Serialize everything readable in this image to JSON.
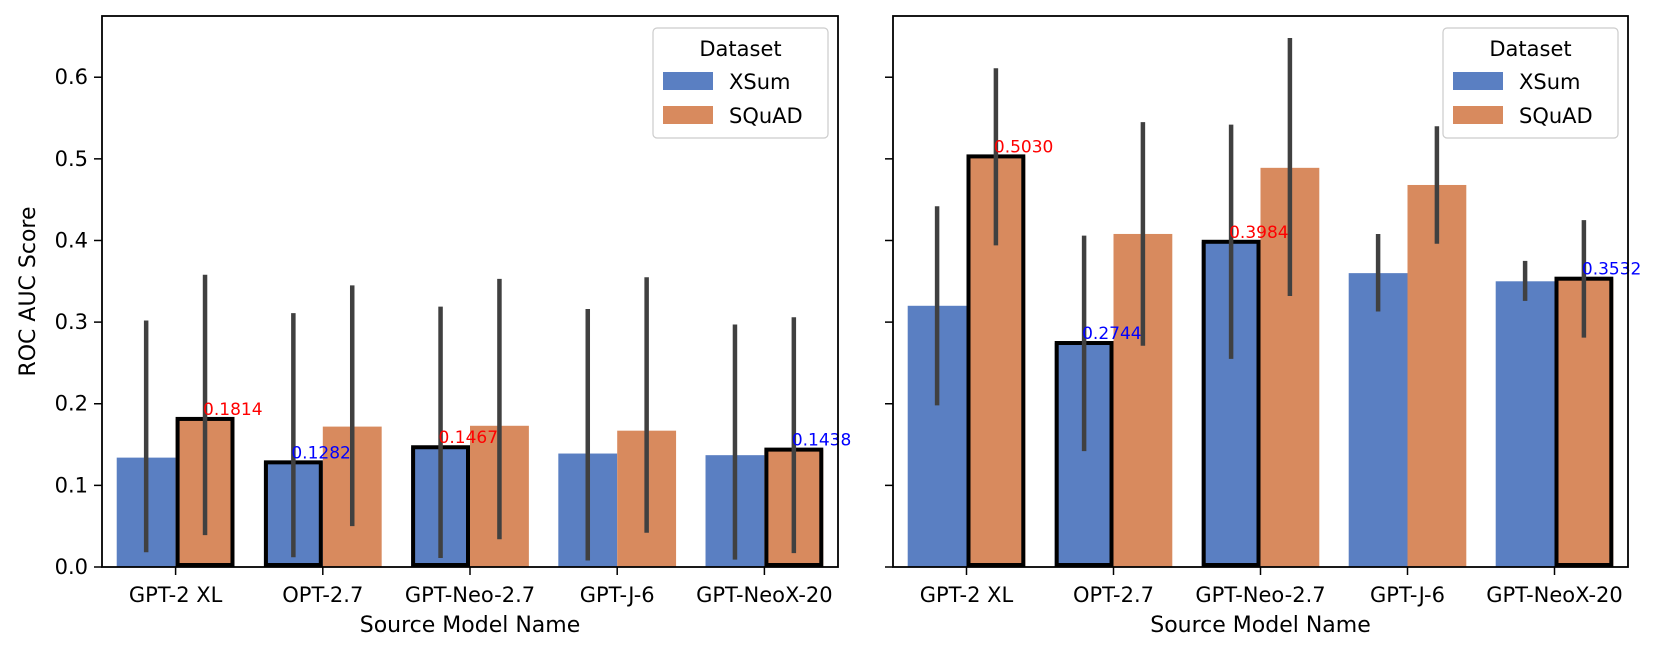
{
  "colors": {
    "xsum": "#5a7fc2",
    "squad": "#d88a5e",
    "errorbar": "#404040",
    "highlight_border": "#000000",
    "annot_blue": "#0000ff",
    "annot_red": "#ff0000"
  },
  "chart_data": [
    {
      "type": "bar",
      "title": "",
      "xlabel": "Source Model Name",
      "ylabel": "ROC AUC Score",
      "ylim": [
        0.0,
        0.675
      ],
      "yticks": [
        "0.0",
        "0.1",
        "0.2",
        "0.3",
        "0.4",
        "0.5",
        "0.6"
      ],
      "show_ytick_labels": true,
      "categories": [
        "GPT-2 XL",
        "OPT-2.7",
        "GPT-Neo-2.7",
        "GPT-J-6",
        "GPT-NeoX-20"
      ],
      "legend": {
        "title": "Dataset",
        "position": "top-right",
        "entries": [
          "XSum",
          "SQuAD"
        ]
      },
      "series": [
        {
          "name": "XSum",
          "values": [
            0.134,
            0.1282,
            0.1467,
            0.139,
            0.137
          ],
          "err_low": [
            0.018,
            0.012,
            0.011,
            0.008,
            0.009
          ],
          "err_high": [
            0.302,
            0.311,
            0.319,
            0.316,
            0.297
          ],
          "highlight": [
            false,
            true,
            true,
            false,
            false
          ]
        },
        {
          "name": "SQuAD",
          "values": [
            0.1814,
            0.172,
            0.173,
            0.167,
            0.1438
          ],
          "err_low": [
            0.039,
            0.05,
            0.034,
            0.042,
            0.017
          ],
          "err_high": [
            0.358,
            0.345,
            0.353,
            0.355,
            0.306
          ],
          "highlight": [
            true,
            false,
            false,
            false,
            true
          ]
        }
      ],
      "annotations": [
        {
          "text": "0.1814",
          "series": 1,
          "category": 0,
          "value": 0.1814,
          "color": "red"
        },
        {
          "text": "0.1282",
          "series": 0,
          "category": 1,
          "value": 0.1282,
          "color": "blue"
        },
        {
          "text": "0.1467",
          "series": 0,
          "category": 2,
          "value": 0.1467,
          "color": "red"
        },
        {
          "text": "0.1438",
          "series": 1,
          "category": 4,
          "value": 0.1438,
          "color": "blue"
        }
      ]
    },
    {
      "type": "bar",
      "title": "",
      "xlabel": "Source Model Name",
      "ylabel": "",
      "ylim": [
        0.0,
        0.675
      ],
      "yticks": [
        "0.0",
        "0.1",
        "0.2",
        "0.3",
        "0.4",
        "0.5",
        "0.6"
      ],
      "show_ytick_labels": false,
      "categories": [
        "GPT-2 XL",
        "OPT-2.7",
        "GPT-Neo-2.7",
        "GPT-J-6",
        "GPT-NeoX-20"
      ],
      "legend": {
        "title": "Dataset",
        "position": "top-right",
        "entries": [
          "XSum",
          "SQuAD"
        ]
      },
      "series": [
        {
          "name": "XSum",
          "values": [
            0.32,
            0.2744,
            0.3984,
            0.36,
            0.35
          ],
          "err_low": [
            0.198,
            0.142,
            0.255,
            0.313,
            0.326
          ],
          "err_high": [
            0.442,
            0.406,
            0.542,
            0.408,
            0.375
          ],
          "highlight": [
            false,
            true,
            true,
            false,
            false
          ]
        },
        {
          "name": "SQuAD",
          "values": [
            0.503,
            0.408,
            0.489,
            0.468,
            0.3532
          ],
          "err_low": [
            0.394,
            0.271,
            0.332,
            0.396,
            0.281
          ],
          "err_high": [
            0.611,
            0.545,
            0.648,
            0.54,
            0.425
          ],
          "highlight": [
            true,
            false,
            false,
            false,
            true
          ]
        }
      ],
      "annotations": [
        {
          "text": "0.5030",
          "series": 1,
          "category": 0,
          "value": 0.503,
          "color": "red"
        },
        {
          "text": "0.2744",
          "series": 0,
          "category": 1,
          "value": 0.2744,
          "color": "blue"
        },
        {
          "text": "0.3984",
          "series": 0,
          "category": 2,
          "value": 0.3984,
          "color": "red"
        },
        {
          "text": "0.3532",
          "series": 1,
          "category": 4,
          "value": 0.3532,
          "color": "blue"
        }
      ]
    }
  ]
}
